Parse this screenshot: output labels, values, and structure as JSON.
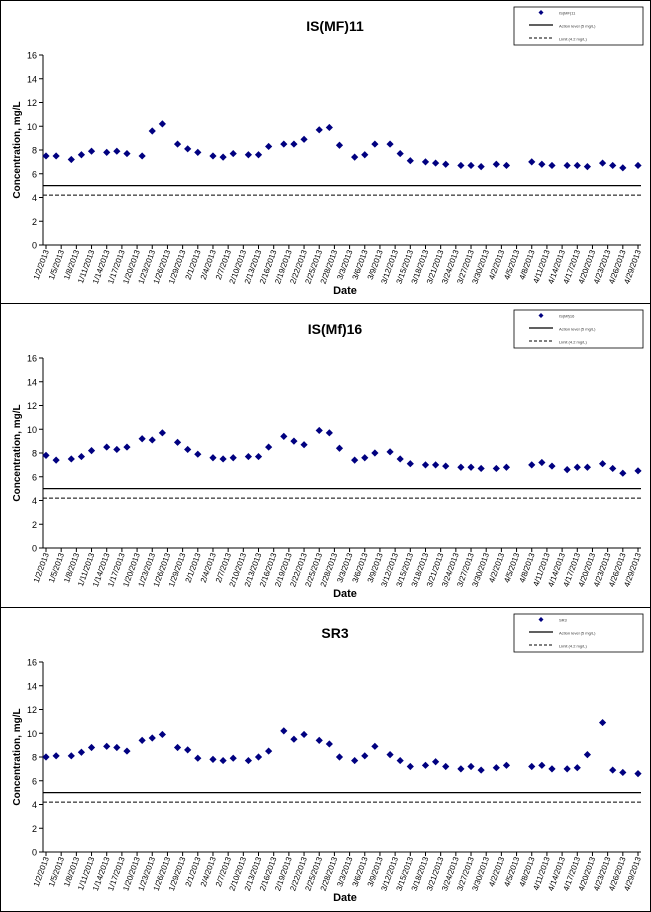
{
  "chart_data": [
    {
      "type": "scatter",
      "title": "IS(MF)11",
      "xlabel": "Date",
      "ylabel": "Concentration, mg/L",
      "ylim": [
        0,
        16
      ],
      "yticks": [
        0,
        2,
        4,
        6,
        8,
        10,
        12,
        14,
        16
      ],
      "grid": false,
      "legend": "top-right",
      "legend_entries": [
        "IS(MF)11",
        "Action level (5 mg/L)",
        "Limit (4.2 mg/L)"
      ],
      "xticks": [
        "1/2/2013",
        "1/5/2013",
        "1/8/2013",
        "1/11/2013",
        "1/14/2013",
        "1/17/2013",
        "1/20/2013",
        "1/23/2013",
        "1/26/2013",
        "1/29/2013",
        "2/1/2013",
        "2/4/2013",
        "2/7/2013",
        "2/10/2013",
        "2/13/2013",
        "2/16/2013",
        "2/19/2013",
        "2/22/2013",
        "2/25/2013",
        "2/28/2013",
        "3/3/2013",
        "3/6/2013",
        "3/9/2013",
        "3/12/2013",
        "3/15/2013",
        "3/18/2013",
        "3/21/2013",
        "3/24/2013",
        "3/27/2013",
        "3/30/2013",
        "4/2/2013",
        "4/5/2013",
        "4/8/2013",
        "4/11/2013",
        "4/14/2013",
        "4/17/2013",
        "4/20/2013",
        "4/23/2013",
        "4/26/2013",
        "4/29/2013"
      ],
      "reference_lines": [
        5.0,
        4.2
      ],
      "points": [
        [
          "1/2/2013",
          7.5
        ],
        [
          "1/4/2013",
          7.5
        ],
        [
          "1/7/2013",
          7.2
        ],
        [
          "1/9/2013",
          7.6
        ],
        [
          "1/11/2013",
          7.9
        ],
        [
          "1/14/2013",
          7.8
        ],
        [
          "1/16/2013",
          7.9
        ],
        [
          "1/18/2013",
          7.7
        ],
        [
          "1/21/2013",
          7.5
        ],
        [
          "1/23/2013",
          9.6
        ],
        [
          "1/25/2013",
          10.2
        ],
        [
          "1/28/2013",
          8.5
        ],
        [
          "1/30/2013",
          8.1
        ],
        [
          "2/1/2013",
          7.8
        ],
        [
          "2/4/2013",
          7.5
        ],
        [
          "2/6/2013",
          7.4
        ],
        [
          "2/8/2013",
          7.7
        ],
        [
          "2/11/2013",
          7.6
        ],
        [
          "2/13/2013",
          7.6
        ],
        [
          "2/15/2013",
          8.3
        ],
        [
          "2/18/2013",
          8.5
        ],
        [
          "2/20/2013",
          8.5
        ],
        [
          "2/22/2013",
          8.9
        ],
        [
          "2/25/2013",
          9.7
        ],
        [
          "2/27/2013",
          9.9
        ],
        [
          "3/1/2013",
          8.4
        ],
        [
          "3/4/2013",
          7.4
        ],
        [
          "3/6/2013",
          7.6
        ],
        [
          "3/8/2013",
          8.5
        ],
        [
          "3/11/2013",
          8.5
        ],
        [
          "3/13/2013",
          7.7
        ],
        [
          "3/15/2013",
          7.1
        ],
        [
          "3/18/2013",
          7.0
        ],
        [
          "3/20/2013",
          6.9
        ],
        [
          "3/22/2013",
          6.8
        ],
        [
          "3/25/2013",
          6.7
        ],
        [
          "3/27/2013",
          6.7
        ],
        [
          "3/29/2013",
          6.6
        ],
        [
          "4/1/2013",
          6.8
        ],
        [
          "4/3/2013",
          6.7
        ],
        [
          "4/8/2013",
          7.0
        ],
        [
          "4/10/2013",
          6.8
        ],
        [
          "4/12/2013",
          6.7
        ],
        [
          "4/15/2013",
          6.7
        ],
        [
          "4/17/2013",
          6.7
        ],
        [
          "4/19/2013",
          6.6
        ],
        [
          "4/22/2013",
          6.9
        ],
        [
          "4/24/2013",
          6.7
        ],
        [
          "4/26/2013",
          6.5
        ],
        [
          "4/29/2013",
          6.7
        ]
      ]
    },
    {
      "type": "scatter",
      "title": "IS(Mf)16",
      "xlabel": "Date",
      "ylabel": "Concentration, mg/L",
      "ylim": [
        0,
        16
      ],
      "yticks": [
        0,
        2,
        4,
        6,
        8,
        10,
        12,
        14,
        16
      ],
      "grid": false,
      "legend": "top-right",
      "legend_entries": [
        "IS(Mf)16",
        "Action level (5 mg/L)",
        "Limit (4.2 mg/L)"
      ],
      "xticks": [
        "1/2/2013",
        "1/5/2013",
        "1/8/2013",
        "1/11/2013",
        "1/14/2013",
        "1/17/2013",
        "1/20/2013",
        "1/23/2013",
        "1/26/2013",
        "1/29/2013",
        "2/1/2013",
        "2/4/2013",
        "2/7/2013",
        "2/10/2013",
        "2/13/2013",
        "2/16/2013",
        "2/19/2013",
        "2/22/2013",
        "2/25/2013",
        "2/28/2013",
        "3/3/2013",
        "3/6/2013",
        "3/9/2013",
        "3/12/2013",
        "3/15/2013",
        "3/18/2013",
        "3/21/2013",
        "3/24/2013",
        "3/27/2013",
        "3/30/2013",
        "4/2/2013",
        "4/5/2013",
        "4/8/2013",
        "4/11/2013",
        "4/14/2013",
        "4/17/2013",
        "4/20/2013",
        "4/23/2013",
        "4/26/2013",
        "4/29/2013"
      ],
      "reference_lines": [
        5.0,
        4.2
      ],
      "points": [
        [
          "1/2/2013",
          7.8
        ],
        [
          "1/4/2013",
          7.4
        ],
        [
          "1/7/2013",
          7.5
        ],
        [
          "1/9/2013",
          7.7
        ],
        [
          "1/11/2013",
          8.2
        ],
        [
          "1/14/2013",
          8.5
        ],
        [
          "1/16/2013",
          8.3
        ],
        [
          "1/18/2013",
          8.5
        ],
        [
          "1/21/2013",
          9.2
        ],
        [
          "1/23/2013",
          9.1
        ],
        [
          "1/25/2013",
          9.7
        ],
        [
          "1/28/2013",
          8.9
        ],
        [
          "1/30/2013",
          8.3
        ],
        [
          "2/1/2013",
          7.9
        ],
        [
          "2/4/2013",
          7.6
        ],
        [
          "2/6/2013",
          7.5
        ],
        [
          "2/8/2013",
          7.6
        ],
        [
          "2/11/2013",
          7.7
        ],
        [
          "2/13/2013",
          7.7
        ],
        [
          "2/15/2013",
          8.5
        ],
        [
          "2/18/2013",
          9.4
        ],
        [
          "2/20/2013",
          9.0
        ],
        [
          "2/22/2013",
          8.7
        ],
        [
          "2/25/2013",
          9.9
        ],
        [
          "2/27/2013",
          9.7
        ],
        [
          "3/1/2013",
          8.4
        ],
        [
          "3/4/2013",
          7.4
        ],
        [
          "3/6/2013",
          7.6
        ],
        [
          "3/8/2013",
          8.0
        ],
        [
          "3/11/2013",
          8.1
        ],
        [
          "3/13/2013",
          7.5
        ],
        [
          "3/15/2013",
          7.1
        ],
        [
          "3/18/2013",
          7.0
        ],
        [
          "3/20/2013",
          7.0
        ],
        [
          "3/22/2013",
          6.9
        ],
        [
          "3/25/2013",
          6.8
        ],
        [
          "3/27/2013",
          6.8
        ],
        [
          "3/29/2013",
          6.7
        ],
        [
          "4/1/2013",
          6.7
        ],
        [
          "4/3/2013",
          6.8
        ],
        [
          "4/8/2013",
          7.0
        ],
        [
          "4/10/2013",
          7.2
        ],
        [
          "4/12/2013",
          6.9
        ],
        [
          "4/15/2013",
          6.6
        ],
        [
          "4/17/2013",
          6.8
        ],
        [
          "4/19/2013",
          6.8
        ],
        [
          "4/22/2013",
          7.1
        ],
        [
          "4/24/2013",
          6.7
        ],
        [
          "4/26/2013",
          6.3
        ],
        [
          "4/29/2013",
          6.5
        ]
      ]
    },
    {
      "type": "scatter",
      "title": "SR3",
      "xlabel": "Date",
      "ylabel": "Concentration, mg/L",
      "ylim": [
        0,
        16
      ],
      "yticks": [
        0,
        2,
        4,
        6,
        8,
        10,
        12,
        14,
        16
      ],
      "grid": false,
      "legend": "top-right",
      "legend_entries": [
        "SR3",
        "Action level (5 mg/L)",
        "Limit (4.2 mg/L)"
      ],
      "xticks": [
        "1/2/2013",
        "1/5/2013",
        "1/8/2013",
        "1/11/2013",
        "1/14/2013",
        "1/17/2013",
        "1/20/2013",
        "1/23/2013",
        "1/26/2013",
        "1/29/2013",
        "2/1/2013",
        "2/4/2013",
        "2/7/2013",
        "2/10/2013",
        "2/13/2013",
        "2/16/2013",
        "2/19/2013",
        "2/22/2013",
        "2/25/2013",
        "2/28/2013",
        "3/3/2013",
        "3/6/2013",
        "3/9/2013",
        "3/12/2013",
        "3/15/2013",
        "3/18/2013",
        "3/21/2013",
        "3/24/2013",
        "3/27/2013",
        "3/30/2013",
        "4/2/2013",
        "4/5/2013",
        "4/8/2013",
        "4/11/2013",
        "4/14/2013",
        "4/17/2013",
        "4/20/2013",
        "4/23/2013",
        "4/26/2013",
        "4/29/2013"
      ],
      "reference_lines": [
        5.0,
        4.2
      ],
      "points": [
        [
          "1/2/2013",
          8.0
        ],
        [
          "1/4/2013",
          8.1
        ],
        [
          "1/7/2013",
          8.1
        ],
        [
          "1/9/2013",
          8.4
        ],
        [
          "1/11/2013",
          8.8
        ],
        [
          "1/14/2013",
          8.9
        ],
        [
          "1/16/2013",
          8.8
        ],
        [
          "1/18/2013",
          8.5
        ],
        [
          "1/21/2013",
          9.4
        ],
        [
          "1/23/2013",
          9.6
        ],
        [
          "1/25/2013",
          9.9
        ],
        [
          "1/28/2013",
          8.8
        ],
        [
          "1/30/2013",
          8.6
        ],
        [
          "2/1/2013",
          7.9
        ],
        [
          "2/4/2013",
          7.8
        ],
        [
          "2/6/2013",
          7.7
        ],
        [
          "2/8/2013",
          7.9
        ],
        [
          "2/11/2013",
          7.7
        ],
        [
          "2/13/2013",
          8.0
        ],
        [
          "2/15/2013",
          8.5
        ],
        [
          "2/18/2013",
          10.2
        ],
        [
          "2/20/2013",
          9.5
        ],
        [
          "2/22/2013",
          9.9
        ],
        [
          "2/25/2013",
          9.4
        ],
        [
          "2/27/2013",
          9.1
        ],
        [
          "3/1/2013",
          8.0
        ],
        [
          "3/4/2013",
          7.7
        ],
        [
          "3/6/2013",
          8.1
        ],
        [
          "3/8/2013",
          8.9
        ],
        [
          "3/11/2013",
          8.2
        ],
        [
          "3/13/2013",
          7.7
        ],
        [
          "3/15/2013",
          7.2
        ],
        [
          "3/18/2013",
          7.3
        ],
        [
          "3/20/2013",
          7.6
        ],
        [
          "3/22/2013",
          7.2
        ],
        [
          "3/25/2013",
          7.0
        ],
        [
          "3/27/2013",
          7.2
        ],
        [
          "3/29/2013",
          6.9
        ],
        [
          "4/1/2013",
          7.1
        ],
        [
          "4/3/2013",
          7.3
        ],
        [
          "4/8/2013",
          7.2
        ],
        [
          "4/10/2013",
          7.3
        ],
        [
          "4/12/2013",
          7.0
        ],
        [
          "4/15/2013",
          7.0
        ],
        [
          "4/17/2013",
          7.1
        ],
        [
          "4/19/2013",
          8.2
        ],
        [
          "4/22/2013",
          10.9
        ],
        [
          "4/24/2013",
          6.9
        ],
        [
          "4/26/2013",
          6.7
        ],
        [
          "4/29/2013",
          6.6
        ]
      ]
    }
  ]
}
